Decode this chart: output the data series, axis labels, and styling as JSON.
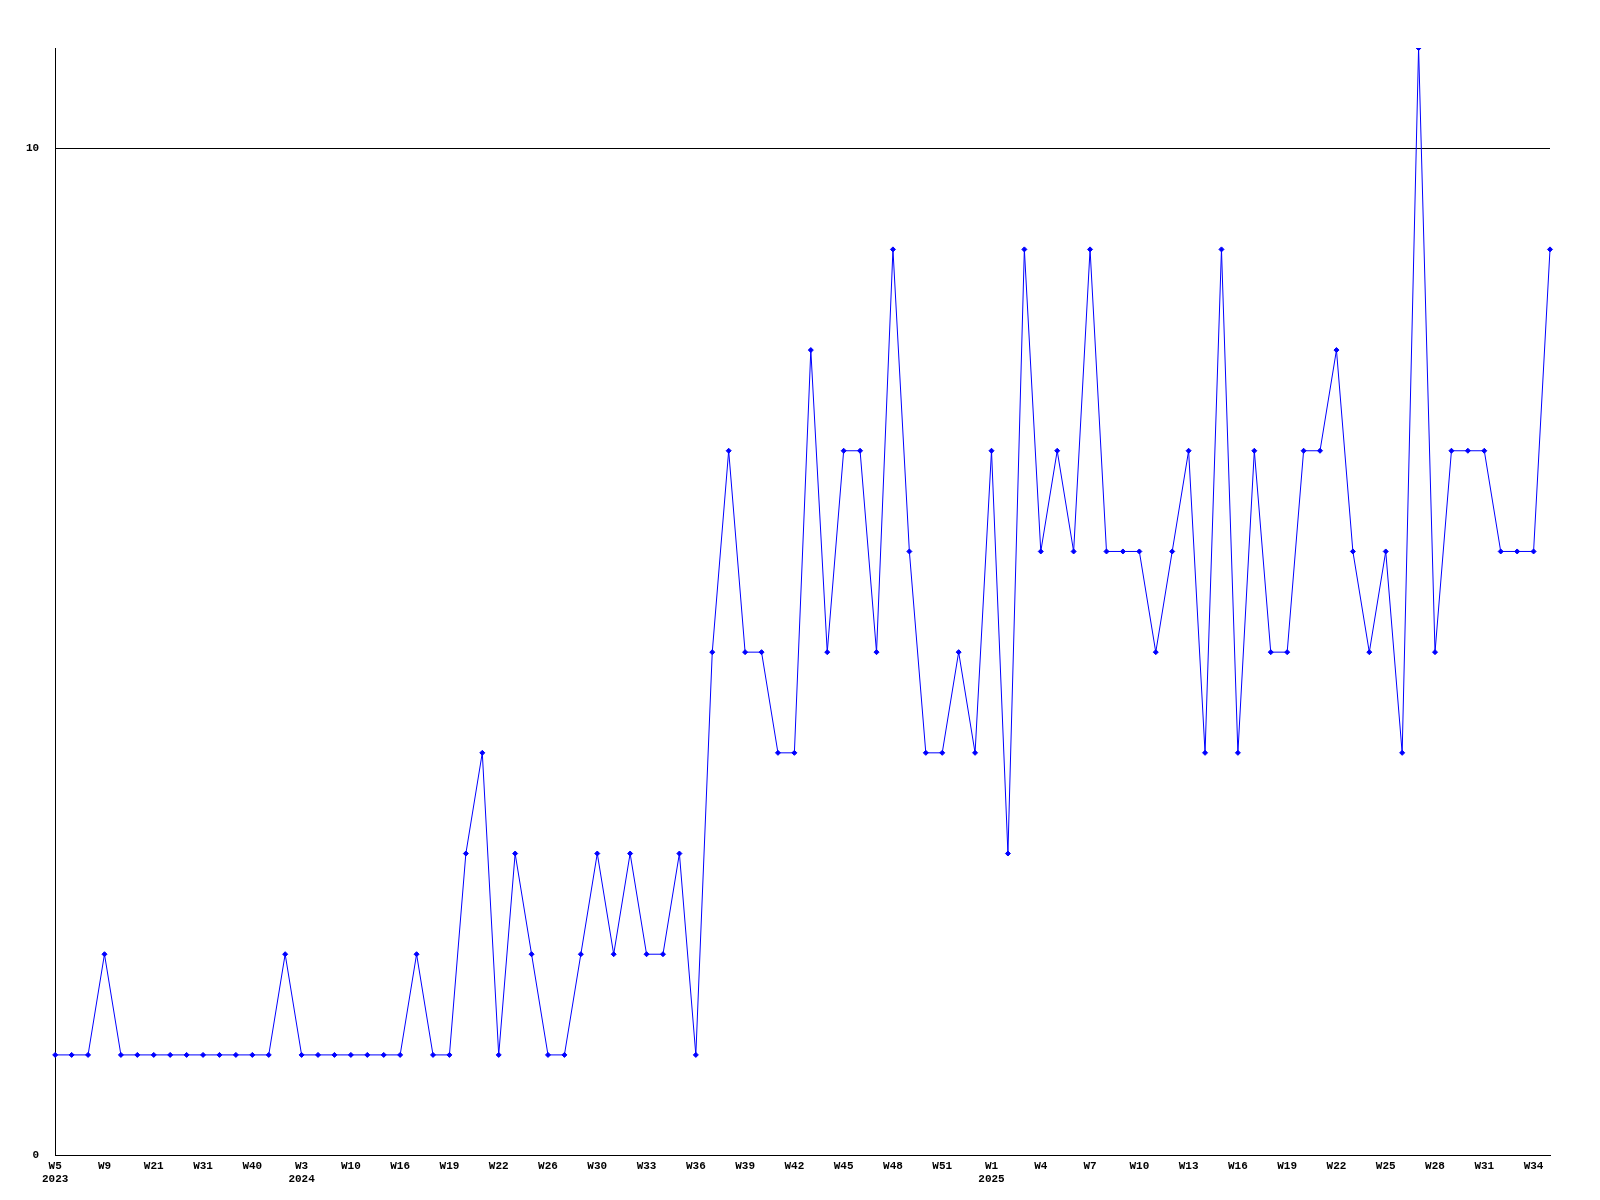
{
  "chart_data": {
    "type": "line",
    "categories": [
      "W5\n2023",
      null,
      null,
      "W9",
      null,
      null,
      "W21",
      null,
      null,
      "W31",
      null,
      null,
      "W40",
      null,
      null,
      "W3\n2024",
      null,
      null,
      "W10",
      null,
      null,
      "W16",
      null,
      null,
      "W19",
      null,
      null,
      "W22",
      null,
      null,
      "W26",
      null,
      null,
      "W30",
      null,
      null,
      "W33",
      null,
      null,
      "W36",
      null,
      null,
      "W39",
      null,
      null,
      "W42",
      null,
      null,
      "W45",
      null,
      null,
      "W48",
      null,
      null,
      "W51",
      null,
      null,
      "W1\n2025",
      null,
      null,
      "W4",
      null,
      null,
      "W7",
      null,
      null,
      "W10",
      null,
      null,
      "W13",
      null,
      null,
      "W16",
      null,
      null,
      "W19",
      null,
      null,
      "W22",
      null,
      null,
      "W25",
      null,
      null,
      "W28",
      null,
      null,
      "W31",
      null,
      null,
      "W34",
      null
    ],
    "series": [
      {
        "color": "#0000ff",
        "values": [
          1,
          1,
          1,
          2,
          1,
          1,
          1,
          1,
          1,
          1,
          1,
          1,
          1,
          1,
          2,
          1,
          1,
          1,
          1,
          1,
          1,
          1,
          2,
          1,
          1,
          3,
          4,
          1,
          3,
          2,
          1,
          1,
          2,
          3,
          2,
          3,
          2,
          2,
          3,
          1,
          5,
          7,
          5,
          5,
          4,
          4,
          8,
          5,
          7,
          7,
          5,
          9,
          6,
          4,
          4,
          5,
          4,
          7,
          3,
          9,
          6,
          7,
          6,
          9,
          6,
          6,
          6,
          5,
          6,
          7,
          4,
          9,
          4,
          7,
          5,
          5,
          7,
          7,
          8,
          6,
          5,
          6,
          4,
          11,
          5,
          7,
          7,
          7,
          6,
          6,
          6,
          9
        ]
      }
    ],
    "ylim": [
      0,
      11
    ],
    "yticks": [
      0,
      10
    ],
    "grid": "y",
    "legend": false,
    "marker": "diamond",
    "line_style": "solid"
  }
}
